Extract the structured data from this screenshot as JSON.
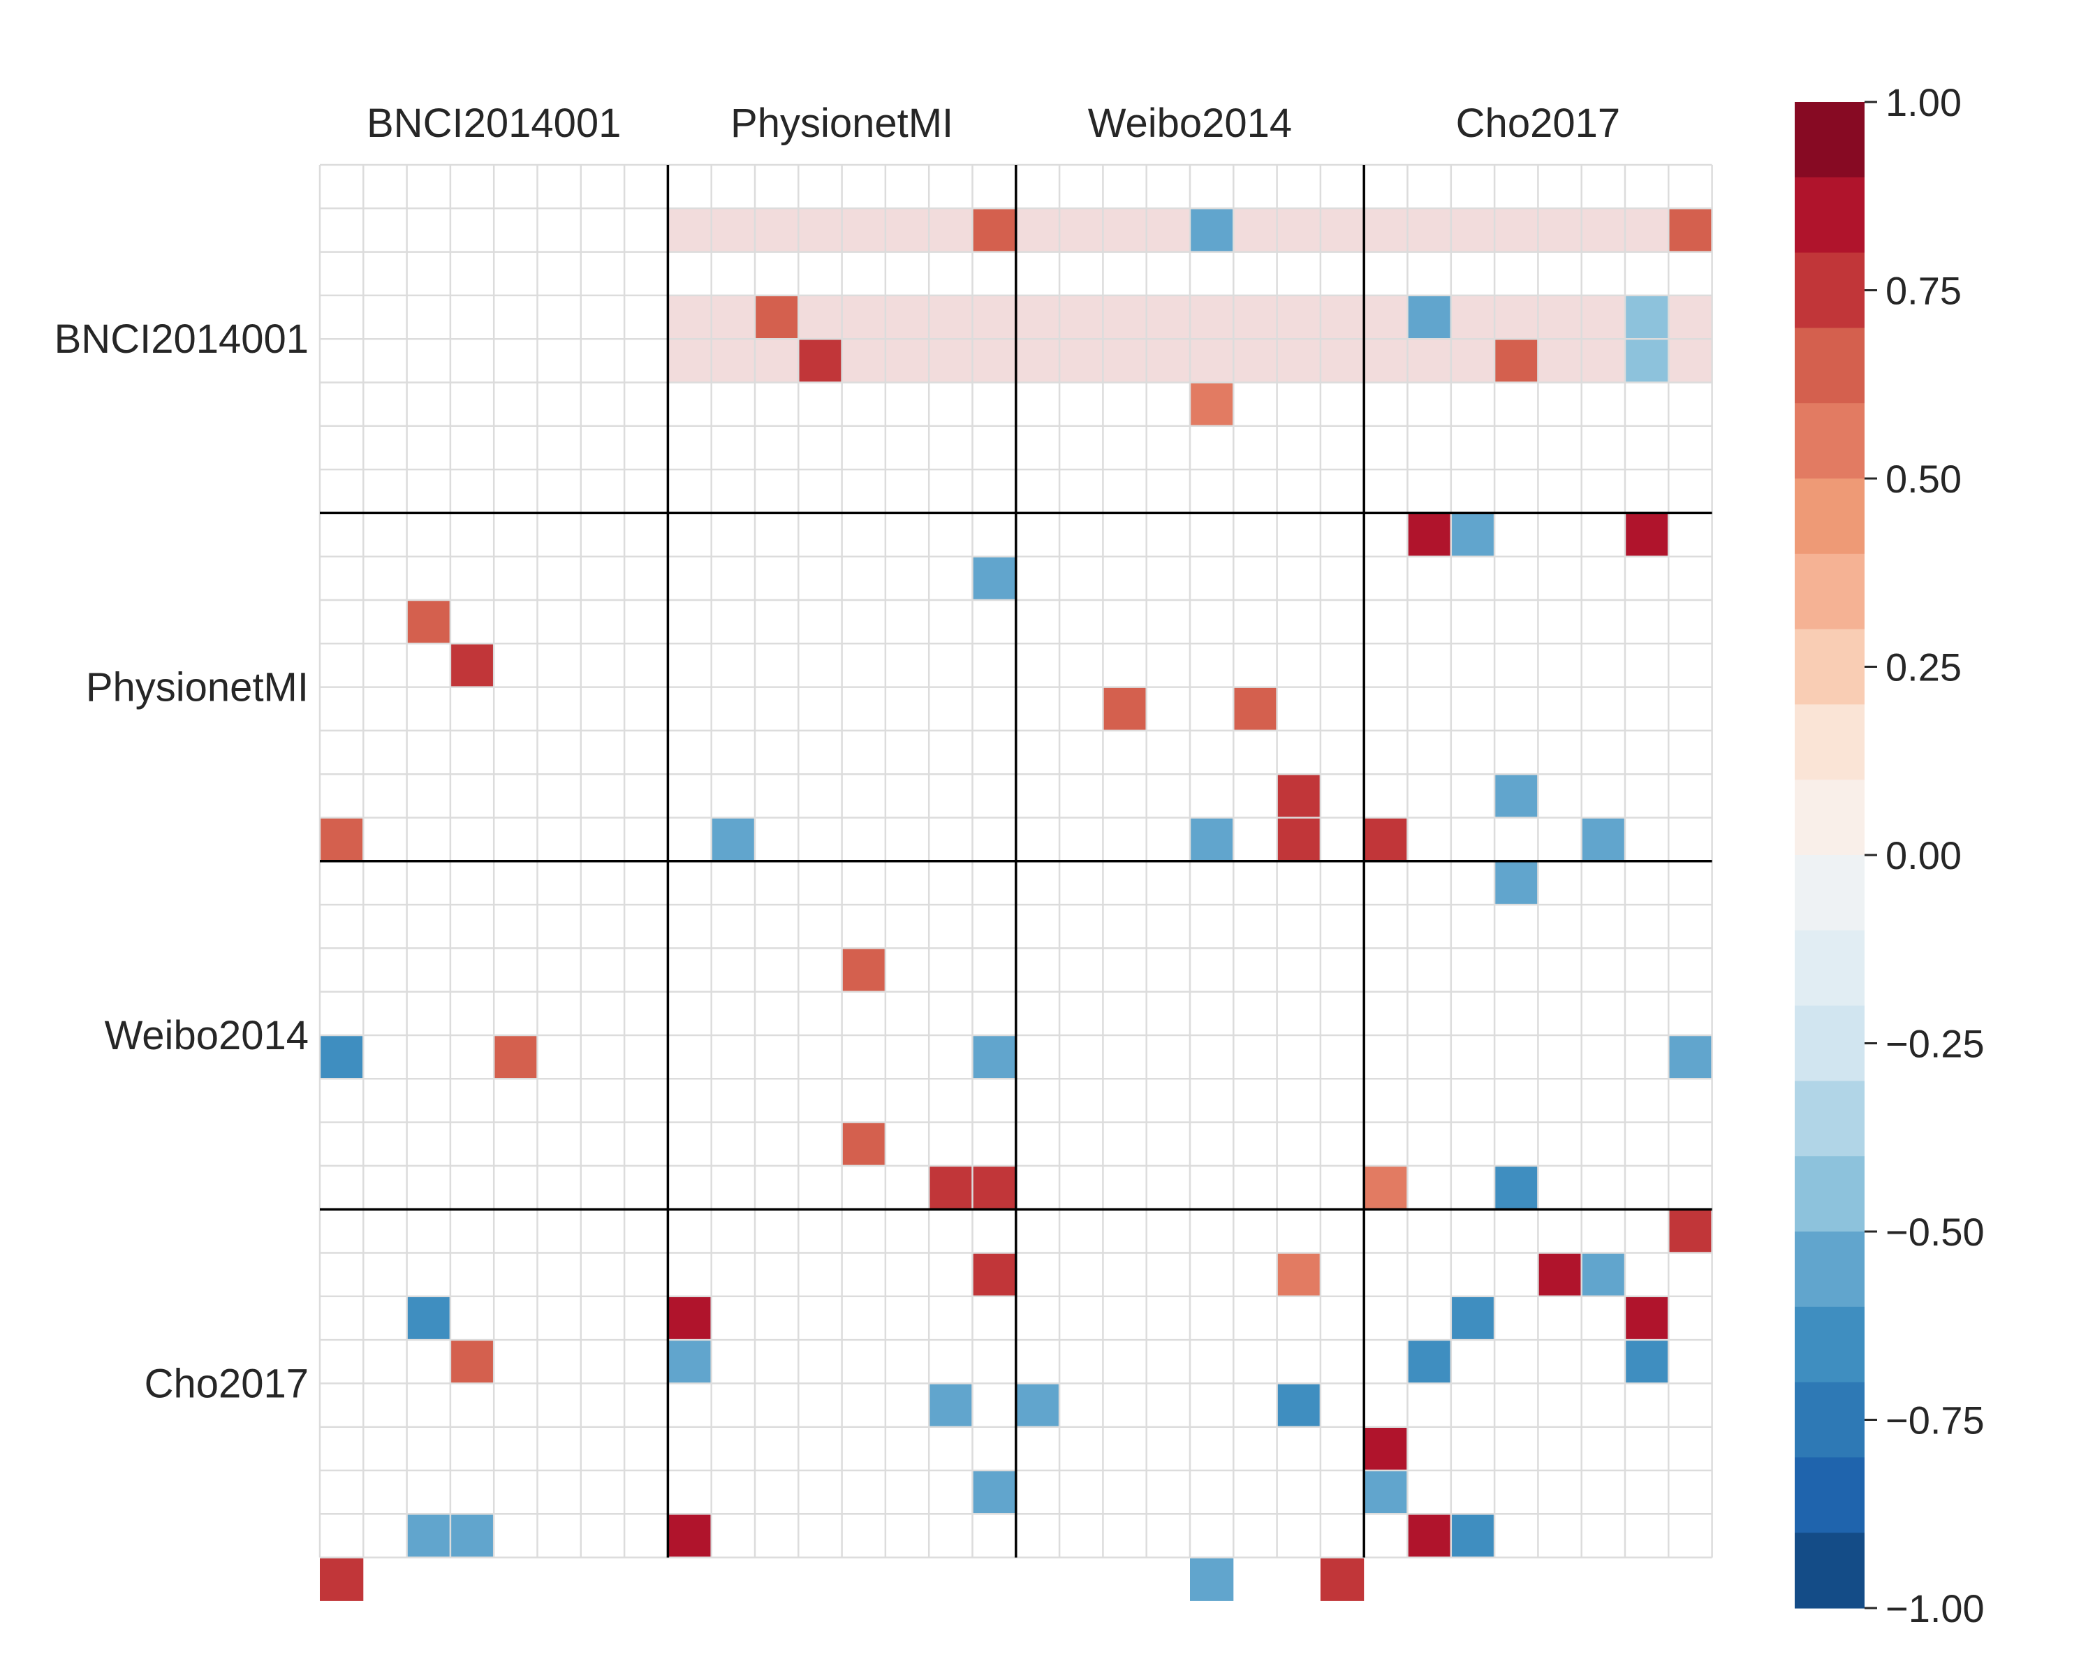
{
  "chart_data": {
    "type": "heatmap",
    "title": "",
    "xlabel": "",
    "ylabel": "",
    "groups": [
      "BNCI2014001",
      "PhysionetMI",
      "Weibo2014",
      "Cho2017"
    ],
    "cells_per_group": 8,
    "value_range": [
      -1.0,
      1.0
    ],
    "colorbar": {
      "ticks": [
        1.0,
        0.75,
        0.5,
        0.25,
        0.0,
        -0.25,
        -0.5,
        -0.75,
        -1.0
      ],
      "tick_labels": [
        "1.00",
        "0.75",
        "0.50",
        "0.25",
        "0.00",
        "−0.25",
        "−0.50",
        "−0.75",
        "−1.00"
      ],
      "levels": 20,
      "colors": [
        "#144c87",
        "#1f64ad",
        "#2e79b5",
        "#3f8ec0",
        "#61a5cd",
        "#8dc2dc",
        "#b1d5e7",
        "#d1e5f0",
        "#e1edf3",
        "#eef2f4",
        "#f9efe9",
        "#fae4d6",
        "#f9cdb4",
        "#f5b294",
        "#ee9a76",
        "#e27b62",
        "#d4604e",
        "#c13639",
        "#b0142c",
        "#870a23"
      ]
    },
    "highlight_rows": [
      1,
      3,
      4
    ],
    "highlight_color": "#f2dcdc",
    "highlight_from_col": 8,
    "cells": [
      [
        1,
        15,
        0.6
      ],
      [
        1,
        20,
        -0.6
      ],
      [
        1,
        31,
        0.65
      ],
      [
        3,
        10,
        0.6
      ],
      [
        3,
        25,
        -0.6
      ],
      [
        3,
        30,
        -0.5
      ],
      [
        4,
        11,
        0.7
      ],
      [
        4,
        27,
        0.6
      ],
      [
        4,
        30,
        -0.5
      ],
      [
        5,
        20,
        0.55
      ],
      [
        8,
        25,
        0.8
      ],
      [
        8,
        26,
        -0.55
      ],
      [
        8,
        30,
        0.8
      ],
      [
        9,
        15,
        -0.55
      ],
      [
        10,
        2,
        0.6
      ],
      [
        11,
        3,
        0.7
      ],
      [
        12,
        18,
        0.6
      ],
      [
        12,
        21,
        0.6
      ],
      [
        14,
        22,
        0.7
      ],
      [
        14,
        27,
        -0.55
      ],
      [
        15,
        0,
        0.6
      ],
      [
        15,
        9,
        -0.55
      ],
      [
        15,
        20,
        -0.55
      ],
      [
        15,
        22,
        0.7
      ],
      [
        15,
        24,
        0.7
      ],
      [
        15,
        29,
        -0.55
      ],
      [
        16,
        27,
        -0.55
      ],
      [
        18,
        12,
        0.6
      ],
      [
        20,
        0,
        -0.7
      ],
      [
        20,
        4,
        0.6
      ],
      [
        20,
        15,
        -0.55
      ],
      [
        20,
        31,
        -0.55
      ],
      [
        22,
        12,
        0.6
      ],
      [
        23,
        14,
        0.7
      ],
      [
        23,
        15,
        0.7
      ],
      [
        23,
        24,
        0.55
      ],
      [
        23,
        27,
        -0.7
      ],
      [
        24,
        31,
        0.7
      ],
      [
        25,
        15,
        0.7
      ],
      [
        25,
        22,
        0.55
      ],
      [
        25,
        28,
        0.8
      ],
      [
        25,
        29,
        -0.55
      ],
      [
        26,
        2,
        -0.7
      ],
      [
        26,
        8,
        0.8
      ],
      [
        26,
        26,
        -0.7
      ],
      [
        26,
        30,
        0.8
      ],
      [
        27,
        3,
        0.6
      ],
      [
        27,
        8,
        -0.55
      ],
      [
        27,
        25,
        -0.7
      ],
      [
        27,
        30,
        -0.7
      ],
      [
        28,
        14,
        -0.55
      ],
      [
        28,
        16,
        -0.55
      ],
      [
        28,
        22,
        -0.7
      ],
      [
        29,
        24,
        0.8
      ],
      [
        30,
        15,
        -0.55
      ],
      [
        30,
        24,
        -0.55
      ],
      [
        31,
        2,
        -0.55
      ],
      [
        31,
        3,
        -0.55
      ],
      [
        31,
        8,
        0.8
      ],
      [
        31,
        25,
        0.8
      ],
      [
        31,
        26,
        -0.7
      ],
      [
        32,
        0,
        0.7
      ],
      [
        32,
        20,
        -0.55
      ],
      [
        32,
        23,
        0.7
      ]
    ]
  }
}
